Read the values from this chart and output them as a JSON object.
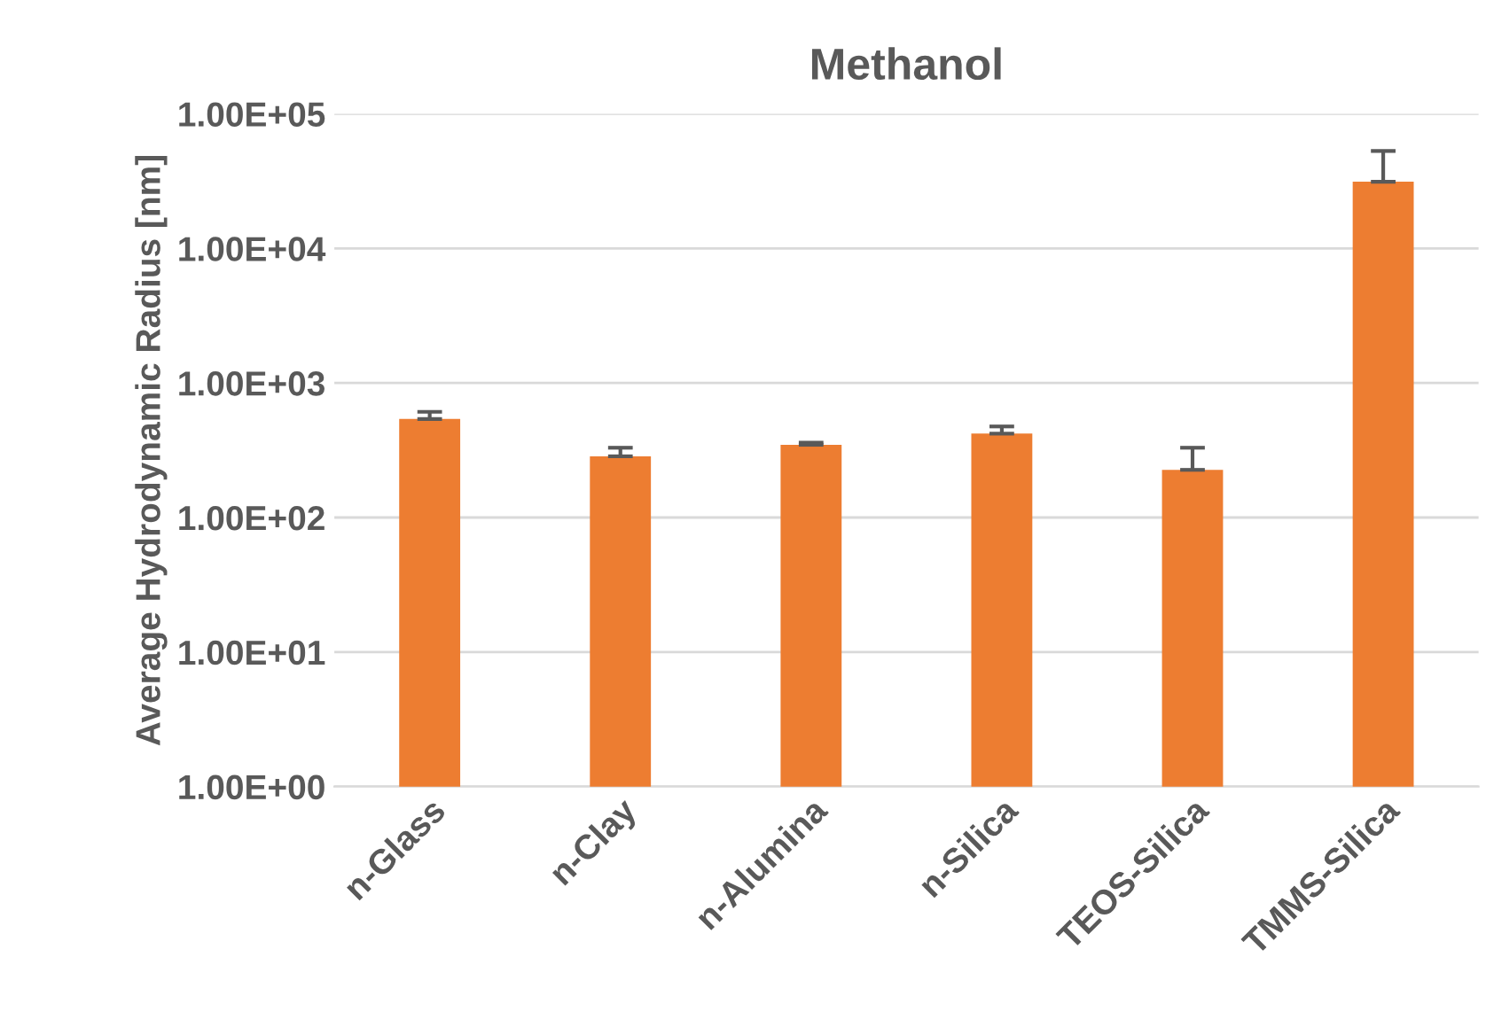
{
  "chart_data": {
    "type": "bar",
    "title": "Methanol",
    "ylabel": "Average Hydrodynamic Radius [nm]",
    "categories": [
      "n-Glass",
      "n-Clay",
      "n-Alumina",
      "n-Silica",
      "TEOS-Silica",
      "TMMS-Silica"
    ],
    "values": [
      540,
      285,
      347,
      420,
      226,
      31300
    ],
    "errors": [
      [
        540,
        610
      ],
      [
        285,
        330
      ],
      [
        347,
        360
      ],
      [
        420,
        475
      ],
      [
        226,
        330
      ],
      [
        31300,
        53000
      ]
    ],
    "color": "#ed7d31",
    "log": "y",
    "ylim": [
      1,
      100000
    ],
    "yticks": [
      {
        "value": 1,
        "label": "1.00E+00"
      },
      {
        "value": 10,
        "label": "1.00E+01"
      },
      {
        "value": 100,
        "label": "1.00E+02"
      },
      {
        "value": 1000,
        "label": "1.00E+03"
      },
      {
        "value": 10000,
        "label": "1.00E+04"
      },
      {
        "value": 100000,
        "label": "1.00E+05"
      }
    ],
    "grid": "y"
  }
}
